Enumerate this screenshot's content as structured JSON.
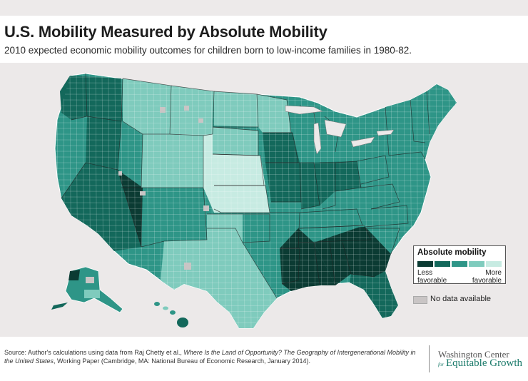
{
  "title": "U.S. Mobility Measured by Absolute Mobility",
  "subtitle": "2010 expected economic mobility outcomes for children born to low-income families in 1980-82.",
  "legend": {
    "title": "Absolute mobility",
    "less_line1": "Less",
    "less_line2": "favorable",
    "more_line1": "More",
    "more_line2": "favorable",
    "colors": [
      "#0b3b33",
      "#13685b",
      "#2e9587",
      "#7fcbbd",
      "#c7ebe2"
    ],
    "no_data_label": "No data available",
    "no_data_color": "#c9c5c5"
  },
  "source": {
    "prefix": "Source: Author's calculations using data from Raj Chetty et al., ",
    "italic": "Where Is the Land of Opportunity? The Geography of Intergenerational Mobility in the United States",
    "suffix": ", Working Paper (Cambridge, MA: National Bureau of Economic Research, January 2014)."
  },
  "brand": {
    "line1": "Washington Center",
    "for": "for",
    "line2": "Equitable Growth"
  },
  "regions": [
    {
      "id": "pacific-northwest",
      "level": 2
    },
    {
      "id": "west-coast",
      "level": 3
    },
    {
      "id": "great-basin",
      "level": 2
    },
    {
      "id": "southwest",
      "level": 2
    },
    {
      "id": "four-corners",
      "level": 1
    },
    {
      "id": "rockies",
      "level": 4
    },
    {
      "id": "northern-plains",
      "level": 4
    },
    {
      "id": "central-plains",
      "level": 5
    },
    {
      "id": "texas",
      "level": 4
    },
    {
      "id": "upper-midwest",
      "level": 4
    },
    {
      "id": "midwest",
      "level": 2
    },
    {
      "id": "ohio-valley",
      "level": 2
    },
    {
      "id": "deep-south",
      "level": 1
    },
    {
      "id": "southeast",
      "level": 1
    },
    {
      "id": "appalachia",
      "level": 3
    },
    {
      "id": "mid-atlantic",
      "level": 3
    },
    {
      "id": "new-england",
      "level": 3
    },
    {
      "id": "florida",
      "level": 2
    },
    {
      "id": "alaska",
      "level": 3
    },
    {
      "id": "hawaii",
      "level": 2
    }
  ]
}
